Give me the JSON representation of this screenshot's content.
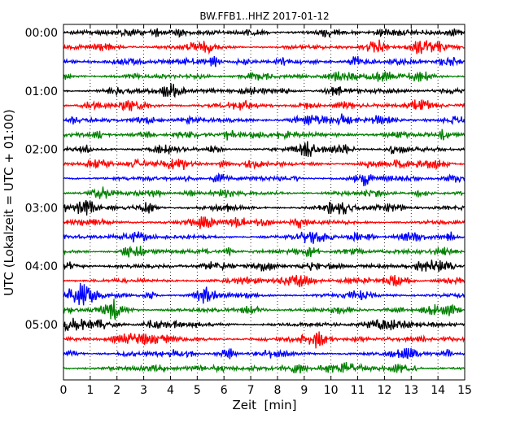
{
  "chart_data": {
    "type": "line",
    "title": "BW.FFB1..HHZ 2017-01-12",
    "xlabel": "Zeit  [min]",
    "ylabel": "UTC (Lokalzeit = UTC + 01:00)",
    "xlim": [
      0,
      15
    ],
    "x_ticks": [
      "0",
      "1",
      "2",
      "3",
      "4",
      "5",
      "6",
      "7",
      "8",
      "9",
      "10",
      "11",
      "12",
      "13",
      "14",
      "15"
    ],
    "y_ticks": [
      "00:00",
      "01:00",
      "02:00",
      "03:00",
      "04:00",
      "05:00"
    ],
    "grid": "x-dotted",
    "trace_interval_minutes": 15,
    "trace_count": 24,
    "trace_colors": [
      "#000000",
      "#ff0000",
      "#0000ff",
      "#008000"
    ],
    "series": [
      {
        "start": "00:00",
        "color": "#000000"
      },
      {
        "start": "00:15",
        "color": "#ff0000"
      },
      {
        "start": "00:30",
        "color": "#0000ff"
      },
      {
        "start": "00:45",
        "color": "#008000"
      },
      {
        "start": "01:00",
        "color": "#000000"
      },
      {
        "start": "01:15",
        "color": "#ff0000"
      },
      {
        "start": "01:30",
        "color": "#0000ff"
      },
      {
        "start": "01:45",
        "color": "#008000"
      },
      {
        "start": "02:00",
        "color": "#000000"
      },
      {
        "start": "02:15",
        "color": "#ff0000"
      },
      {
        "start": "02:30",
        "color": "#0000ff"
      },
      {
        "start": "02:45",
        "color": "#008000"
      },
      {
        "start": "03:00",
        "color": "#000000"
      },
      {
        "start": "03:15",
        "color": "#ff0000"
      },
      {
        "start": "03:30",
        "color": "#0000ff"
      },
      {
        "start": "03:45",
        "color": "#008000"
      },
      {
        "start": "04:00",
        "color": "#000000"
      },
      {
        "start": "04:15",
        "color": "#ff0000"
      },
      {
        "start": "04:30",
        "color": "#0000ff"
      },
      {
        "start": "04:45",
        "color": "#008000"
      },
      {
        "start": "05:00",
        "color": "#000000"
      },
      {
        "start": "05:15",
        "color": "#ff0000"
      },
      {
        "start": "05:30",
        "color": "#0000ff"
      },
      {
        "start": "05:45",
        "color": "#008000"
      }
    ]
  }
}
